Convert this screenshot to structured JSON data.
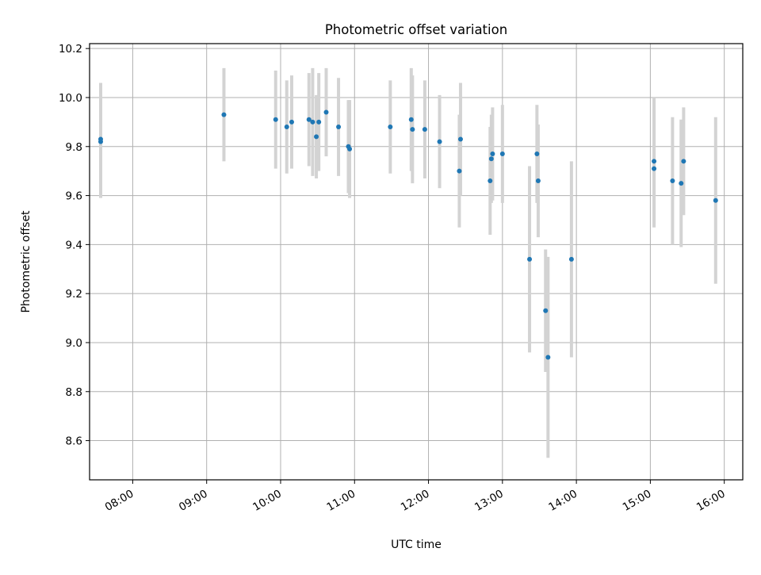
{
  "chart_data": {
    "type": "scatter",
    "title": "Photometric offset variation",
    "xlabel": "UTC time",
    "ylabel": "Photometric offset",
    "grid": true,
    "legend": "none",
    "xlim": [
      "07:25",
      "16:15"
    ],
    "ylim": [
      8.44,
      10.22
    ],
    "x_ticks": [
      "08:00",
      "09:00",
      "10:00",
      "11:00",
      "12:00",
      "13:00",
      "14:00",
      "15:00",
      "16:00"
    ],
    "y_ticks": [
      "8.6",
      "8.8",
      "9.0",
      "9.2",
      "9.4",
      "9.6",
      "9.8",
      "10.0",
      "10.2"
    ],
    "colors": {
      "marker": "#1f77b4",
      "errorbar": "#d3d3d3",
      "grid": "#b0b0b0"
    },
    "series": [
      {
        "points": [
          {
            "t": "07:34",
            "y": 9.82,
            "err": 0.23
          },
          {
            "t": "07:34",
            "y": 9.83,
            "err": 0.23
          },
          {
            "t": "09:14",
            "y": 9.93,
            "err": 0.19
          },
          {
            "t": "09:56",
            "y": 9.91,
            "err": 0.2
          },
          {
            "t": "10:05",
            "y": 9.88,
            "err": 0.19
          },
          {
            "t": "10:09",
            "y": 9.9,
            "err": 0.19
          },
          {
            "t": "10:23",
            "y": 9.91,
            "err": 0.19
          },
          {
            "t": "10:26",
            "y": 9.9,
            "err": 0.22
          },
          {
            "t": "10:29",
            "y": 9.84,
            "err": 0.17
          },
          {
            "t": "10:31",
            "y": 9.9,
            "err": 0.2
          },
          {
            "t": "10:37",
            "y": 9.94,
            "err": 0.18
          },
          {
            "t": "10:47",
            "y": 9.88,
            "err": 0.2
          },
          {
            "t": "10:55",
            "y": 9.8,
            "err": 0.19
          },
          {
            "t": "10:56",
            "y": 9.79,
            "err": 0.2
          },
          {
            "t": "11:29",
            "y": 9.88,
            "err": 0.19
          },
          {
            "t": "11:46",
            "y": 9.91,
            "err": 0.21
          },
          {
            "t": "11:47",
            "y": 9.87,
            "err": 0.22
          },
          {
            "t": "11:57",
            "y": 9.87,
            "err": 0.2
          },
          {
            "t": "12:09",
            "y": 9.82,
            "err": 0.19
          },
          {
            "t": "12:25",
            "y": 9.7,
            "err": 0.23
          },
          {
            "t": "12:26",
            "y": 9.83,
            "err": 0.23
          },
          {
            "t": "12:50",
            "y": 9.66,
            "err": 0.22
          },
          {
            "t": "12:51",
            "y": 9.75,
            "err": 0.18
          },
          {
            "t": "12:52",
            "y": 9.77,
            "err": 0.19
          },
          {
            "t": "13:00",
            "y": 9.77,
            "err": 0.2
          },
          {
            "t": "13:22",
            "y": 9.34,
            "err": 0.38
          },
          {
            "t": "13:28",
            "y": 9.77,
            "err": 0.2
          },
          {
            "t": "13:29",
            "y": 9.66,
            "err": 0.23
          },
          {
            "t": "13:35",
            "y": 9.13,
            "err": 0.25
          },
          {
            "t": "13:37",
            "y": 8.94,
            "err": 0.41
          },
          {
            "t": "13:56",
            "y": 9.34,
            "err": 0.4
          },
          {
            "t": "15:03",
            "y": 9.74,
            "err": 0.26
          },
          {
            "t": "15:03",
            "y": 9.71,
            "err": 0.24
          },
          {
            "t": "15:18",
            "y": 9.66,
            "err": 0.26
          },
          {
            "t": "15:25",
            "y": 9.65,
            "err": 0.26
          },
          {
            "t": "15:27",
            "y": 9.74,
            "err": 0.22
          },
          {
            "t": "15:53",
            "y": 9.58,
            "err": 0.34
          }
        ]
      }
    ]
  }
}
